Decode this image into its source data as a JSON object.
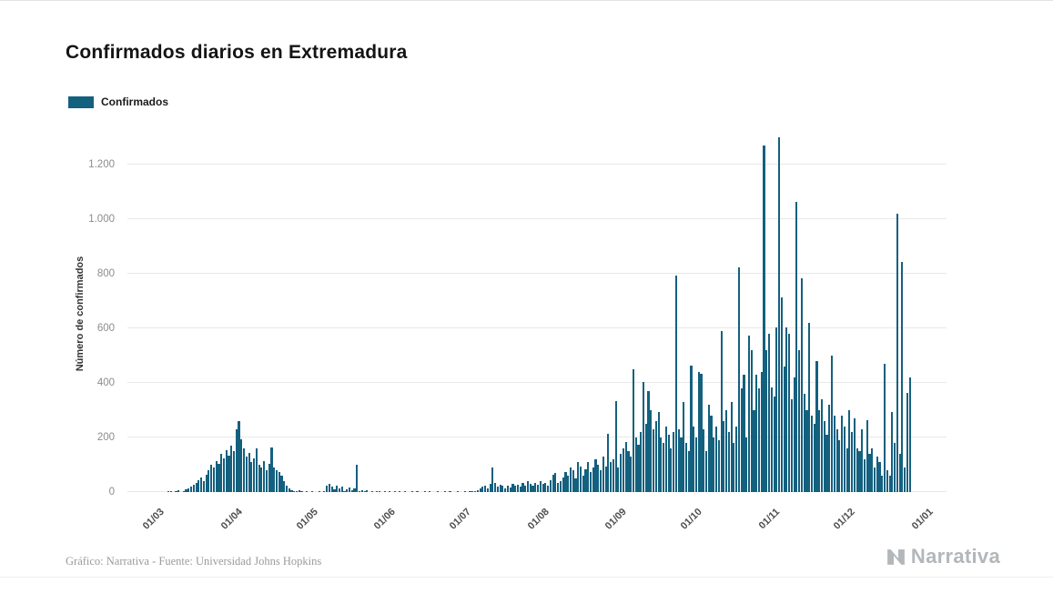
{
  "page": {
    "title": "Confirmados diarios en Extremadura",
    "footer_credit": "Gráfico: Narrativa - Fuente: Universidad Johns Hopkins",
    "brand": "Narrativa"
  },
  "legend": {
    "label": "Confirmados",
    "color": "#14607f"
  },
  "chart_data": {
    "type": "bar",
    "title": "Confirmados diarios en Extremadura",
    "series_name": "Confirmados",
    "xlabel": "",
    "ylabel": "Número de confirmados",
    "bar_color": "#14607f",
    "grid": true,
    "legend_position": "top-left",
    "ylim": [
      0,
      1310
    ],
    "y_ticks": [
      {
        "value": 0,
        "label": "0"
      },
      {
        "value": 200,
        "label": "200"
      },
      {
        "value": 400,
        "label": "400"
      },
      {
        "value": 600,
        "label": "600"
      },
      {
        "value": 800,
        "label": "800"
      },
      {
        "value": 1000,
        "label": "1.000"
      },
      {
        "value": 1200,
        "label": "1.200"
      }
    ],
    "x_ticks": [
      {
        "day_index": 0,
        "label": "01/03"
      },
      {
        "day_index": 31,
        "label": "01/04"
      },
      {
        "day_index": 61,
        "label": "01/05"
      },
      {
        "day_index": 92,
        "label": "01/06"
      },
      {
        "day_index": 122,
        "label": "01/07"
      },
      {
        "day_index": 153,
        "label": "01/08"
      },
      {
        "day_index": 184,
        "label": "01/09"
      },
      {
        "day_index": 214,
        "label": "01/10"
      },
      {
        "day_index": 245,
        "label": "01/11"
      },
      {
        "day_index": 275,
        "label": "01/12"
      },
      {
        "day_index": 306,
        "label": "01/01"
      }
    ],
    "x_pad_days_before": 14,
    "x_pad_days_after": 6,
    "values": [
      0,
      0,
      2,
      1,
      0,
      3,
      8,
      0,
      5,
      10,
      14,
      20,
      28,
      35,
      45,
      55,
      40,
      65,
      80,
      100,
      90,
      115,
      105,
      140,
      125,
      155,
      135,
      170,
      150,
      230,
      260,
      195,
      160,
      130,
      145,
      110,
      125,
      160,
      100,
      90,
      115,
      80,
      105,
      165,
      90,
      80,
      75,
      60,
      40,
      25,
      15,
      8,
      5,
      3,
      6,
      2,
      0,
      4,
      0,
      2,
      0,
      0,
      3,
      0,
      5,
      25,
      30,
      20,
      10,
      25,
      15,
      20,
      5,
      10,
      18,
      8,
      12,
      100,
      5,
      8,
      3,
      6,
      0,
      4,
      0,
      2,
      5,
      0,
      3,
      0,
      2,
      0,
      2,
      0,
      1,
      0,
      3,
      0,
      0,
      1,
      0,
      2,
      0,
      0,
      1,
      0,
      2,
      0,
      0,
      1,
      0,
      0,
      2,
      0,
      1,
      0,
      0,
      2,
      0,
      0,
      1,
      0,
      3,
      2,
      5,
      8,
      12,
      20,
      25,
      15,
      30,
      90,
      35,
      20,
      28,
      22,
      15,
      25,
      18,
      30,
      22,
      28,
      20,
      35,
      25,
      40,
      30,
      25,
      35,
      28,
      40,
      30,
      35,
      25,
      45,
      65,
      70,
      35,
      40,
      55,
      75,
      60,
      90,
      80,
      50,
      110,
      95,
      60,
      85,
      110,
      75,
      90,
      120,
      100,
      80,
      130,
      95,
      215,
      110,
      120,
      335,
      90,
      140,
      160,
      185,
      150,
      130,
      450,
      200,
      175,
      220,
      405,
      250,
      370,
      300,
      230,
      260,
      295,
      200,
      180,
      240,
      210,
      160,
      220,
      795,
      230,
      200,
      330,
      180,
      150,
      465,
      240,
      200,
      440,
      435,
      230,
      150,
      320,
      280,
      200,
      240,
      190,
      590,
      260,
      300,
      220,
      330,
      180,
      240,
      825,
      380,
      430,
      200,
      575,
      520,
      300,
      430,
      380,
      440,
      1270,
      520,
      580,
      385,
      350,
      605,
      1300,
      715,
      460,
      605,
      580,
      340,
      420,
      1065,
      520,
      785,
      360,
      300,
      620,
      280,
      250,
      480,
      300,
      340,
      260,
      210,
      320,
      500,
      280,
      230,
      190,
      280,
      240,
      160,
      300,
      220,
      270,
      160,
      150,
      230,
      120,
      265,
      140,
      160,
      90,
      130,
      110,
      60,
      470,
      80,
      60,
      295,
      180,
      1020,
      140,
      845,
      90,
      365,
      420,
      0,
      0,
      0,
      0,
      0,
      0,
      0,
      0
    ]
  }
}
